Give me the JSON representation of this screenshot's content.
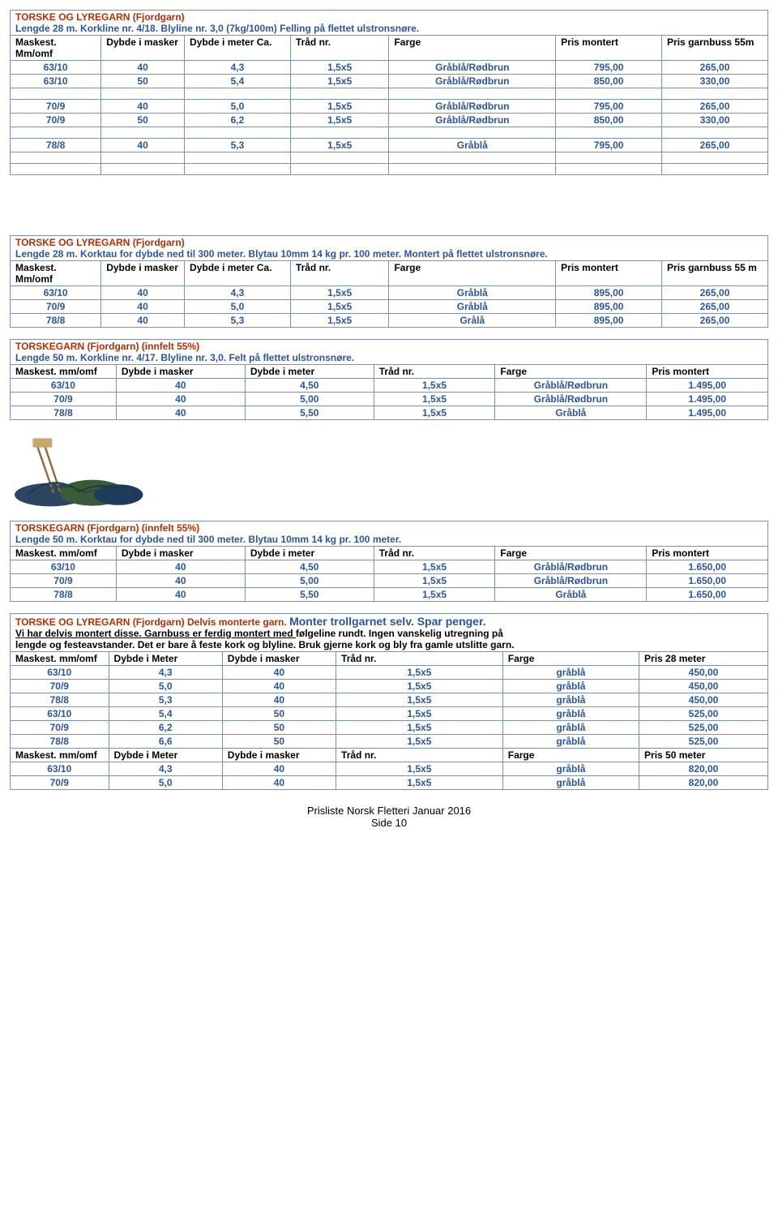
{
  "footer": {
    "line1": "Prisliste Norsk Fletteri Januar 2016",
    "line2": "Side 10"
  },
  "tbl1": {
    "title_head": "TORSKE OG LYREGARN (Fjordgarn)",
    "title_sub": "Lengde 28 m. Korkline nr. 4/18. Blyline nr. 3,0 (7kg/100m) Felling på flettet ulstronsnøre.",
    "cols": [
      "Maskest. Mm/omf",
      "Dybde i masker",
      "Dybde i meter Ca.",
      "Tråd nr.",
      "Farge",
      "Pris montert",
      "Pris garnbuss 55m"
    ],
    "rows": [
      [
        "63/10",
        "40",
        "4,3",
        "1,5x5",
        "Gråblå/Rødbrun",
        "795,00",
        "265,00"
      ],
      [
        "63/10",
        "50",
        "5,4",
        "1,5x5",
        "Gråblå/Rødbrun",
        "850,00",
        "330,00"
      ],
      null,
      [
        "70/9",
        "40",
        "5,0",
        "1,5x5",
        "Gråblå/Rødbrun",
        "795,00",
        "265,00"
      ],
      [
        "70/9",
        "50",
        "6,2",
        "1,5x5",
        "Gråblå/Rødbrun",
        "850,00",
        "330,00"
      ],
      null,
      [
        "78/8",
        "40",
        "5,3",
        "1,5x5",
        "Gråblå",
        "795,00",
        "265,00"
      ],
      null,
      null
    ]
  },
  "tbl2": {
    "title_head": "TORSKE OG LYREGARN (Fjordgarn)",
    "title_sub": "Lengde 28 m. Korktau for dybde ned til 300 meter. Blytau 10mm 14 kg pr. 100 meter. Montert på flettet ulstronsnøre.",
    "cols": [
      "Maskest. Mm/omf",
      "Dybde i masker",
      "Dybde i meter Ca.",
      "Tråd nr.",
      "Farge",
      "Pris montert",
      "Pris garnbuss 55 m"
    ],
    "rows": [
      [
        "63/10",
        "40",
        "4,3",
        "1,5x5",
        "Gråblå",
        "895,00",
        "265,00"
      ],
      [
        "70/9",
        "40",
        "5,0",
        "1,5x5",
        "Gråblå",
        "895,00",
        "265,00"
      ],
      [
        "78/8",
        "40",
        "5,3",
        "1,5x5",
        "Grålå",
        "895,00",
        "265,00"
      ]
    ]
  },
  "tbl3": {
    "title_head": "TORSKEGARN (Fjordgarn) (innfelt 55%)",
    "title_sub_pre": "Lengde 50 m. Korkline nr. 4/17. Blyline nr. 3,0.",
    "title_sub_post": " Felt på flettet ulstronsnøre.",
    "cols": [
      "Maskest. mm/omf",
      "Dybde i masker",
      "Dybde i meter",
      "Tråd nr.",
      "Farge",
      "Pris montert"
    ],
    "rows": [
      [
        "63/10",
        "40",
        "4,50",
        "1,5x5",
        "Gråblå/Rødbrun",
        "1.495,00"
      ],
      [
        "70/9",
        "40",
        "5,00",
        "1,5x5",
        "Gråblå/Rødbrun",
        "1.495,00"
      ],
      [
        "78/8",
        "40",
        "5,50",
        "1,5x5",
        "Gråblå",
        "1.495,00"
      ]
    ]
  },
  "tbl4": {
    "title_head": "TORSKEGARN (Fjordgarn) (innfelt 55%)",
    "title_sub": "Lengde 50 m. Korktau for dybde ned til 300 meter. Blytau 10mm 14 kg pr. 100 meter.",
    "cols": [
      "Maskest. mm/omf",
      "Dybde i masker",
      "Dybde i meter",
      "Tråd nr.",
      "Farge",
      "Pris montert"
    ],
    "rows": [
      [
        "63/10",
        "40",
        "4,50",
        "1,5x5",
        "Gråblå/Rødbrun",
        "1.650,00"
      ],
      [
        "70/9",
        "40",
        "5,00",
        "1,5x5",
        "Gråblå/Rødbrun",
        "1.650,00"
      ],
      [
        "78/8",
        "40",
        "5,50",
        "1,5x5",
        "Gråblå",
        "1.650,00"
      ]
    ]
  },
  "tbl5": {
    "title_head": "TORSKE OG LYREGARN (Fjordgarn) Delvis monterte garn.",
    "title_extra": " Monter trollgarnet selv. Spar penger.",
    "line1_a": "Vi har delvis montert disse.",
    "line1_b": " Garnbuss er ferdig montert med ",
    "line1_c": "følgeline rundt. Ingen vanskelig utregning på",
    "line2": "lengde og festeavstander. Det er bare å feste kork og blyline. Bruk gjerne kork og bly fra gamle utslitte garn.",
    "cols1": [
      "Maskest. mm/omf",
      "Dybde i Meter",
      "Dybde i masker",
      "Tråd nr.",
      "Farge",
      "Pris 28 meter"
    ],
    "rows1": [
      [
        "63/10",
        "4,3",
        "40",
        "1,5x5",
        "gråblå",
        "450,00"
      ],
      [
        "70/9",
        "5,0",
        "40",
        "1,5x5",
        "gråblå",
        "450,00"
      ],
      [
        "78/8",
        "5,3",
        "40",
        "1,5x5",
        "gråblå",
        "450,00"
      ],
      [
        "63/10",
        "5,4",
        "50",
        "1,5x5",
        "gråblå",
        "525,00"
      ],
      [
        "70/9",
        "6,2",
        "50",
        "1,5x5",
        "gråblå",
        "525,00"
      ],
      [
        "78/8",
        "6,6",
        "50",
        "1,5x5",
        "gråblå",
        "525,00"
      ]
    ],
    "cols2": [
      "Maskest. mm/omf",
      "Dybde i Meter",
      "Dybde i masker",
      "Tråd nr.",
      "Farge",
      "Pris  50 meter"
    ],
    "rows2": [
      [
        "63/10",
        "4,3",
        "40",
        "1,5x5",
        "gråblå",
        "820,00"
      ],
      [
        "70/9",
        "5,0",
        "40",
        "1,5x5",
        "gråblå",
        "820,00"
      ]
    ]
  }
}
